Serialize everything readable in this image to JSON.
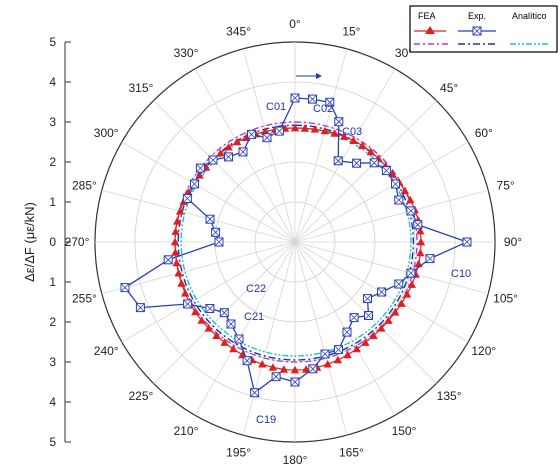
{
  "chart_data": {
    "type": "polar",
    "ylabel": "Δε/ΔF (με/kN)",
    "r_axis": {
      "ticks": [
        "5",
        "4",
        "3",
        "2",
        "1",
        "0",
        "1",
        "2",
        "3",
        "4",
        "5"
      ]
    },
    "angle_labels": [
      "0°",
      "15°",
      "30°",
      "45°",
      "60°",
      "75°",
      "90°",
      "105°",
      "120°",
      "135°",
      "150°",
      "165°",
      "180°",
      "195°",
      "210°",
      "225°",
      "240°",
      "255°",
      "270°",
      "285°",
      "300°",
      "315°",
      "330°",
      "345°"
    ],
    "legend": {
      "labels": [
        "FEA",
        "Exp.",
        "Analítico"
      ]
    },
    "annotations": [
      "C01",
      "C02",
      "C03",
      "C10",
      "C19",
      "C21",
      "C22"
    ],
    "series": [
      {
        "name": "FEA",
        "color": "#e02020",
        "marker": "triangle",
        "r_curve": [
          [
            0,
            2.85
          ],
          [
            45,
            2.95
          ],
          [
            90,
            3.15
          ],
          [
            135,
            3.05
          ],
          [
            180,
            3.2
          ],
          [
            225,
            3.05
          ],
          [
            270,
            3.0
          ],
          [
            315,
            2.9
          ],
          [
            360,
            2.85
          ]
        ]
      },
      {
        "name": "Exp.",
        "color": "#2a3fb8",
        "marker": "crossed-square",
        "points": [
          [
            0,
            3.6
          ],
          [
            7,
            3.6
          ],
          [
            14,
            3.6
          ],
          [
            20,
            3.2
          ],
          [
            28,
            2.3
          ],
          [
            38,
            2.5
          ],
          [
            45,
            2.8
          ],
          [
            52,
            2.9
          ],
          [
            60,
            2.9
          ],
          [
            68,
            2.8
          ],
          [
            75,
            3.0
          ],
          [
            82,
            3.1
          ],
          [
            90,
            4.3
          ],
          [
            97,
            3.4
          ],
          [
            105,
            3.0
          ],
          [
            112,
            2.8
          ],
          [
            120,
            2.5
          ],
          [
            128,
            2.3
          ],
          [
            135,
            2.6
          ],
          [
            142,
            2.4
          ],
          [
            150,
            2.6
          ],
          [
            158,
            2.9
          ],
          [
            165,
            2.9
          ],
          [
            172,
            3.2
          ],
          [
            180,
            3.5
          ],
          [
            188,
            3.4
          ],
          [
            195,
            3.9
          ],
          [
            202,
            3.2
          ],
          [
            210,
            2.8
          ],
          [
            218,
            2.6
          ],
          [
            225,
            2.5
          ],
          [
            232,
            2.7
          ],
          [
            240,
            3.1
          ],
          [
            247,
            4.2
          ],
          [
            255,
            4.4
          ],
          [
            262,
            3.2
          ],
          [
            270,
            1.9
          ],
          [
            277,
            2.0
          ],
          [
            285,
            2.2
          ],
          [
            292,
            2.9
          ],
          [
            300,
            2.9
          ],
          [
            308,
            3.0
          ],
          [
            315,
            2.9
          ],
          [
            322,
            2.7
          ],
          [
            330,
            2.6
          ],
          [
            338,
            2.9
          ],
          [
            345,
            2.7
          ],
          [
            352,
            2.8
          ]
        ]
      },
      {
        "name": "Analítico",
        "colors": [
          "#b040d0",
          "#2030a0",
          "#20c0d0"
        ],
        "r_curves": [
          [
            [
              0,
              3.0
            ],
            [
              90,
              3.05
            ],
            [
              180,
              3.0
            ],
            [
              270,
              3.0
            ],
            [
              360,
              3.0
            ]
          ],
          [
            [
              0,
              2.92
            ],
            [
              90,
              2.96
            ],
            [
              180,
              2.95
            ],
            [
              270,
              2.92
            ],
            [
              360,
              2.92
            ]
          ],
          [
            [
              0,
              2.85
            ],
            [
              90,
              2.9
            ],
            [
              180,
              2.85
            ],
            [
              270,
              2.85
            ],
            [
              360,
              2.85
            ]
          ]
        ]
      }
    ]
  }
}
